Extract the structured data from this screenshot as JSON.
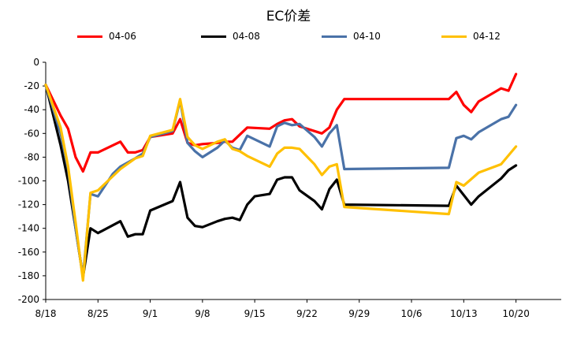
{
  "chart_data": {
    "type": "line",
    "title": "EC价差",
    "xlabel": "",
    "ylabel": "",
    "ylim": [
      -200,
      0
    ],
    "yticks": [
      0,
      -20,
      -40,
      -60,
      -80,
      -100,
      -120,
      -140,
      -160,
      -180,
      -200
    ],
    "x_tick_labels": [
      "8/18",
      "8/25",
      "9/1",
      "9/8",
      "9/15",
      "9/22",
      "9/29",
      "10/6",
      "10/13",
      "10/20"
    ],
    "x_range_days": [
      0,
      63
    ],
    "x_unit": "days from 8/18",
    "grid": false,
    "legend": "top",
    "series": [
      {
        "name": "04-06",
        "color": "#ff0000",
        "points": [
          [
            0,
            -19
          ],
          [
            2,
            -45
          ],
          [
            3,
            -56
          ],
          [
            4,
            -80
          ],
          [
            5,
            -92
          ],
          [
            6,
            -76
          ],
          [
            7,
            -76
          ],
          [
            10,
            -67
          ],
          [
            11,
            -76
          ],
          [
            12,
            -76
          ],
          [
            13,
            -74
          ],
          [
            14,
            -63
          ],
          [
            17,
            -60
          ],
          [
            18,
            -48
          ],
          [
            19,
            -68
          ],
          [
            20,
            -70
          ],
          [
            21,
            -69
          ],
          [
            23,
            -68
          ],
          [
            24,
            -67
          ],
          [
            25,
            -67
          ],
          [
            27,
            -55
          ],
          [
            30,
            -56
          ],
          [
            31,
            -52
          ],
          [
            32,
            -49
          ],
          [
            33,
            -48
          ],
          [
            34,
            -54
          ],
          [
            36,
            -58
          ],
          [
            37,
            -60
          ],
          [
            38,
            -55
          ],
          [
            39,
            -40
          ],
          [
            40,
            -31
          ],
          [
            54,
            -31
          ],
          [
            55,
            -25
          ],
          [
            56,
            -36
          ],
          [
            57,
            -42
          ],
          [
            58,
            -33
          ],
          [
            61,
            -22
          ],
          [
            62,
            -24
          ],
          [
            63,
            -10
          ]
        ]
      },
      {
        "name": "04-08",
        "color": "#000000",
        "points": [
          [
            0,
            -19
          ],
          [
            2,
            -70
          ],
          [
            3,
            -100
          ],
          [
            4,
            -140
          ],
          [
            5,
            -181
          ],
          [
            6,
            -140
          ],
          [
            7,
            -144
          ],
          [
            10,
            -134
          ],
          [
            11,
            -147
          ],
          [
            12,
            -145
          ],
          [
            13,
            -145
          ],
          [
            14,
            -125
          ],
          [
            17,
            -117
          ],
          [
            18,
            -101
          ],
          [
            19,
            -131
          ],
          [
            20,
            -138
          ],
          [
            21,
            -139
          ],
          [
            23,
            -134
          ],
          [
            24,
            -132
          ],
          [
            25,
            -131
          ],
          [
            26,
            -133
          ],
          [
            27,
            -120
          ],
          [
            28,
            -113
          ],
          [
            30,
            -111
          ],
          [
            31,
            -99
          ],
          [
            32,
            -97
          ],
          [
            33,
            -97
          ],
          [
            34,
            -108
          ],
          [
            36,
            -117
          ],
          [
            37,
            -124
          ],
          [
            38,
            -107
          ],
          [
            39,
            -99
          ],
          [
            40,
            -120
          ],
          [
            54,
            -121
          ],
          [
            55,
            -104
          ],
          [
            57,
            -120
          ],
          [
            58,
            -113
          ],
          [
            61,
            -98
          ],
          [
            62,
            -91
          ],
          [
            63,
            -87
          ]
        ]
      },
      {
        "name": "04-10",
        "color": "#4a72a8",
        "points": [
          [
            0,
            -19
          ],
          [
            2,
            -60
          ],
          [
            3,
            -90
          ],
          [
            4,
            -140
          ],
          [
            5,
            -181
          ],
          [
            6,
            -111
          ],
          [
            7,
            -113
          ],
          [
            9,
            -94
          ],
          [
            10,
            -88
          ],
          [
            12,
            -81
          ],
          [
            13,
            -77
          ],
          [
            14,
            -63
          ],
          [
            17,
            -58
          ],
          [
            18,
            -32
          ],
          [
            19,
            -68
          ],
          [
            20,
            -75
          ],
          [
            21,
            -80
          ],
          [
            23,
            -72
          ],
          [
            24,
            -66
          ],
          [
            25,
            -72
          ],
          [
            26,
            -74
          ],
          [
            27,
            -62
          ],
          [
            30,
            -71
          ],
          [
            31,
            -54
          ],
          [
            32,
            -51
          ],
          [
            33,
            -53
          ],
          [
            34,
            -52
          ],
          [
            36,
            -63
          ],
          [
            37,
            -71
          ],
          [
            38,
            -60
          ],
          [
            39,
            -53
          ],
          [
            40,
            -90
          ],
          [
            54,
            -89
          ],
          [
            55,
            -64
          ],
          [
            56,
            -62
          ],
          [
            57,
            -65
          ],
          [
            58,
            -59
          ],
          [
            61,
            -48
          ],
          [
            62,
            -46
          ],
          [
            63,
            -36
          ]
        ]
      },
      {
        "name": "04-12",
        "color": "#ffc000",
        "points": [
          [
            0,
            -19
          ],
          [
            2,
            -55
          ],
          [
            3,
            -88
          ],
          [
            4,
            -135
          ],
          [
            5,
            -184
          ],
          [
            6,
            -110
          ],
          [
            7,
            -108
          ],
          [
            9,
            -96
          ],
          [
            10,
            -90
          ],
          [
            12,
            -81
          ],
          [
            13,
            -79
          ],
          [
            14,
            -62
          ],
          [
            17,
            -57
          ],
          [
            18,
            -31
          ],
          [
            19,
            -63
          ],
          [
            20,
            -70
          ],
          [
            21,
            -73
          ],
          [
            23,
            -67
          ],
          [
            24,
            -65
          ],
          [
            25,
            -73
          ],
          [
            26,
            -75
          ],
          [
            27,
            -79
          ],
          [
            30,
            -88
          ],
          [
            31,
            -77
          ],
          [
            32,
            -72
          ],
          [
            33,
            -72
          ],
          [
            34,
            -73
          ],
          [
            36,
            -86
          ],
          [
            37,
            -95
          ],
          [
            38,
            -88
          ],
          [
            39,
            -86
          ],
          [
            40,
            -122
          ],
          [
            54,
            -128
          ],
          [
            55,
            -101
          ],
          [
            56,
            -104
          ],
          [
            58,
            -93
          ],
          [
            61,
            -86
          ],
          [
            63,
            -71
          ]
        ]
      }
    ]
  }
}
